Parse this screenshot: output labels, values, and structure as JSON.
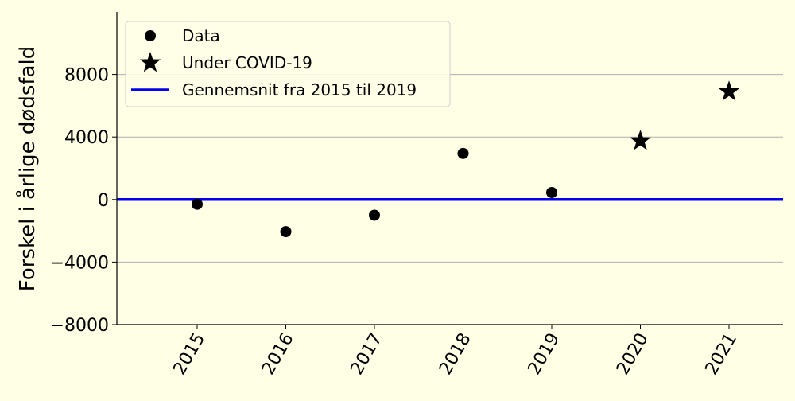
{
  "chart_data": {
    "type": "scatter",
    "ylabel": "Forskel i årlige dødsfald",
    "categories": [
      "2015",
      "2016",
      "2017",
      "2018",
      "2019",
      "2020",
      "2021"
    ],
    "ylim": [
      -8000,
      12000
    ],
    "yticks": [
      -8000,
      -4000,
      0,
      4000,
      8000
    ],
    "ytick_labels": [
      "−8000",
      "−4000",
      "0",
      "4000",
      "8000"
    ],
    "grid": "horizontal",
    "legend_position": "top-left",
    "series": [
      {
        "name": "Data",
        "marker": "circle",
        "color": "#000000",
        "x": [
          "2015",
          "2016",
          "2017",
          "2018",
          "2019"
        ],
        "values": [
          -300,
          -2050,
          -1000,
          2950,
          450
        ]
      },
      {
        "name": "Under COVID-19",
        "marker": "star",
        "color": "#000000",
        "x": [
          "2020",
          "2021"
        ],
        "values": [
          3750,
          6900
        ]
      },
      {
        "name": "Gennemsnit fra 2015 til 2019",
        "marker": "line",
        "color": "#0000ee",
        "value": 0
      }
    ]
  }
}
